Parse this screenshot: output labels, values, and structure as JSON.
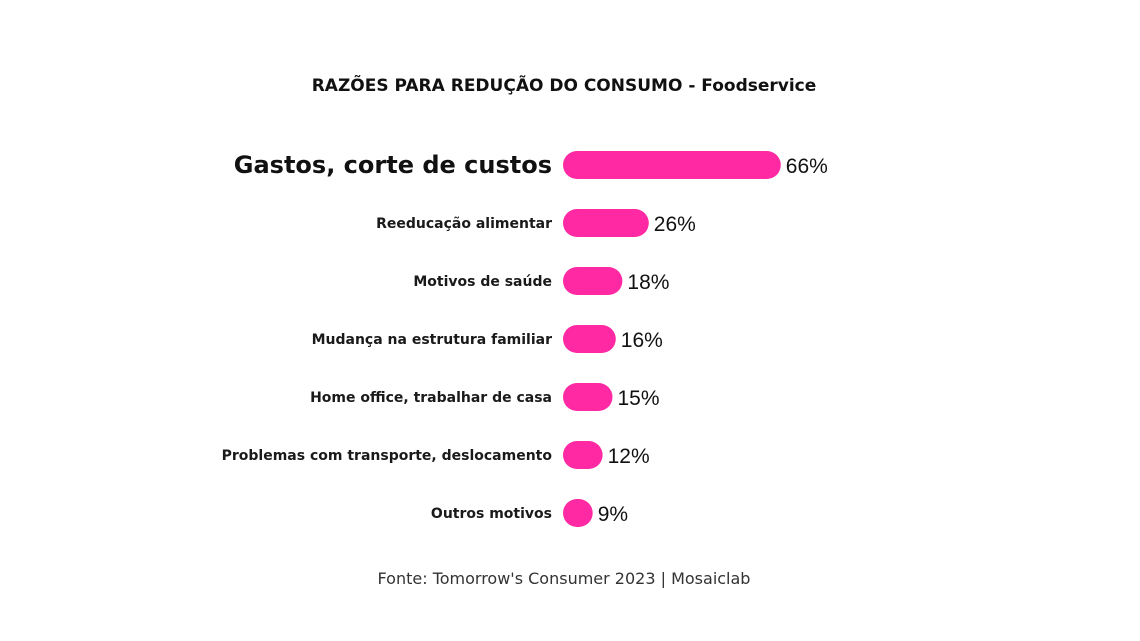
{
  "chart_data": {
    "type": "bar",
    "orientation": "horizontal",
    "title": "RAZÕES PARA REDUÇÃO DO CONSUMO - Foodservice",
    "categories": [
      "Gastos, corte de custos",
      "Reeducação alimentar",
      "Motivos de saúde",
      "Mudança na estrutura familiar",
      "Home office, trabalhar de casa",
      "Problemas com transporte, deslocamento",
      "Outros motivos"
    ],
    "values": [
      66,
      26,
      18,
      16,
      15,
      12,
      9
    ],
    "value_labels": [
      "66%",
      "26%",
      "18%",
      "16%",
      "15%",
      "12%",
      "9%"
    ],
    "highlight_index": 0,
    "xlim": [
      0,
      100
    ],
    "grid": false,
    "bar_color": "#ff2aa3",
    "source": "Fonte: Tomorrow's Consumer 2023 | Mosaiclab"
  }
}
